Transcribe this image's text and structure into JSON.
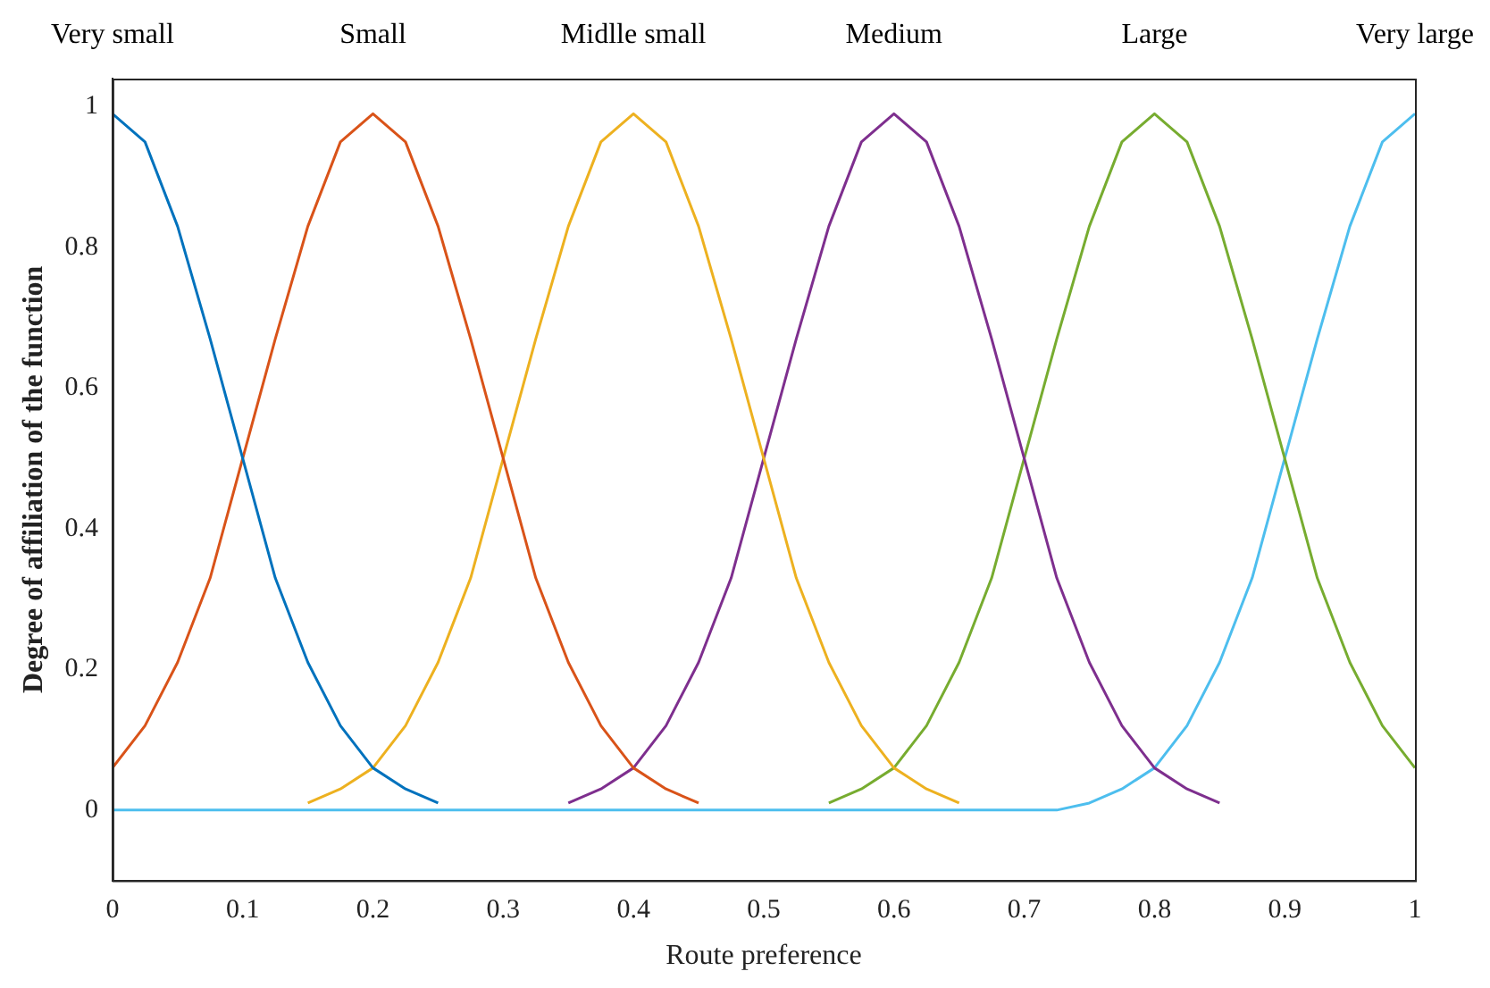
{
  "chart_data": {
    "type": "line",
    "xlabel": "Route preference",
    "ylabel": "Degree of affiliation of the function",
    "x": [
      0,
      0.025,
      0.05,
      0.075,
      0.1,
      0.125,
      0.15,
      0.175,
      0.2,
      0.225,
      0.25,
      0.275,
      0.3,
      0.325,
      0.35,
      0.375,
      0.4,
      0.425,
      0.45,
      0.475,
      0.5,
      0.525,
      0.55,
      0.575,
      0.6,
      0.625,
      0.65,
      0.675,
      0.7,
      0.725,
      0.75,
      0.775,
      0.8,
      0.825,
      0.85,
      0.875,
      0.9,
      0.925,
      0.95,
      0.975,
      1
    ],
    "xlim": [
      0,
      1
    ],
    "xticks": [
      0,
      0.1,
      0.2,
      0.3,
      0.4,
      0.5,
      0.6,
      0.7,
      0.8,
      0.9,
      1
    ],
    "ylim": [
      -0.1,
      1.04
    ],
    "yticks": [
      0,
      0.2,
      0.4,
      0.6,
      0.8,
      1
    ],
    "grid": false,
    "legend": false,
    "marker": "none",
    "line_style": "solid",
    "series": [
      {
        "name": "Very small",
        "color": "#0072bd",
        "values": [
          0.99,
          0.95,
          0.83,
          0.67,
          0.5,
          0.33,
          0.21,
          0.12,
          0.06,
          0.03,
          0.01,
          null,
          null,
          null,
          null,
          null,
          null,
          null,
          null,
          null,
          null,
          null,
          null,
          null,
          null,
          null,
          null,
          null,
          null,
          null,
          null,
          null,
          null,
          null,
          null,
          null,
          null,
          null,
          null,
          null,
          null
        ]
      },
      {
        "name": "Small",
        "color": "#d95319",
        "values": [
          0.06,
          0.12,
          0.21,
          0.33,
          0.5,
          0.67,
          0.83,
          0.95,
          0.99,
          0.95,
          0.83,
          0.67,
          0.5,
          0.33,
          0.21,
          0.12,
          0.06,
          0.03,
          0.01,
          null,
          null,
          null,
          null,
          null,
          null,
          null,
          null,
          null,
          null,
          null,
          null,
          null,
          null,
          null,
          null,
          null,
          null,
          null,
          null,
          null,
          null
        ]
      },
      {
        "name": "Midlle small",
        "color": "#edb120",
        "values": [
          null,
          null,
          null,
          null,
          null,
          null,
          0.01,
          0.03,
          0.06,
          0.12,
          0.21,
          0.33,
          0.5,
          0.67,
          0.83,
          0.95,
          0.99,
          0.95,
          0.83,
          0.67,
          0.5,
          0.33,
          0.21,
          0.12,
          0.06,
          0.03,
          0.01,
          null,
          null,
          null,
          null,
          null,
          null,
          null,
          null,
          null,
          null,
          null,
          null,
          null,
          null
        ]
      },
      {
        "name": "Medium",
        "color": "#7e2f8e",
        "values": [
          null,
          null,
          null,
          null,
          null,
          null,
          null,
          null,
          null,
          null,
          null,
          null,
          null,
          null,
          0.01,
          0.03,
          0.06,
          0.12,
          0.21,
          0.33,
          0.5,
          0.67,
          0.83,
          0.95,
          0.99,
          0.95,
          0.83,
          0.67,
          0.5,
          0.33,
          0.21,
          0.12,
          0.06,
          0.03,
          0.01,
          null,
          null,
          null,
          null,
          null,
          null
        ]
      },
      {
        "name": "Large",
        "color": "#77ac30",
        "values": [
          null,
          null,
          null,
          null,
          null,
          null,
          null,
          null,
          null,
          null,
          null,
          null,
          null,
          null,
          null,
          null,
          null,
          null,
          null,
          null,
          null,
          null,
          0.01,
          0.03,
          0.06,
          0.12,
          0.21,
          0.33,
          0.5,
          0.67,
          0.83,
          0.95,
          0.99,
          0.95,
          0.83,
          0.67,
          0.5,
          0.33,
          0.21,
          0.12,
          0.06
        ]
      },
      {
        "name": "Very large",
        "color": "#4dbeee",
        "values": [
          0,
          0,
          0,
          0,
          0,
          0,
          0,
          0,
          0,
          0,
          0,
          0,
          0,
          0,
          0,
          0,
          0,
          0,
          0,
          0,
          0,
          0,
          0,
          0,
          0,
          0,
          0,
          0,
          0,
          0,
          0.01,
          0.03,
          0.06,
          0.12,
          0.21,
          0.33,
          0.5,
          0.67,
          0.83,
          0.95,
          0.99
        ]
      }
    ]
  }
}
